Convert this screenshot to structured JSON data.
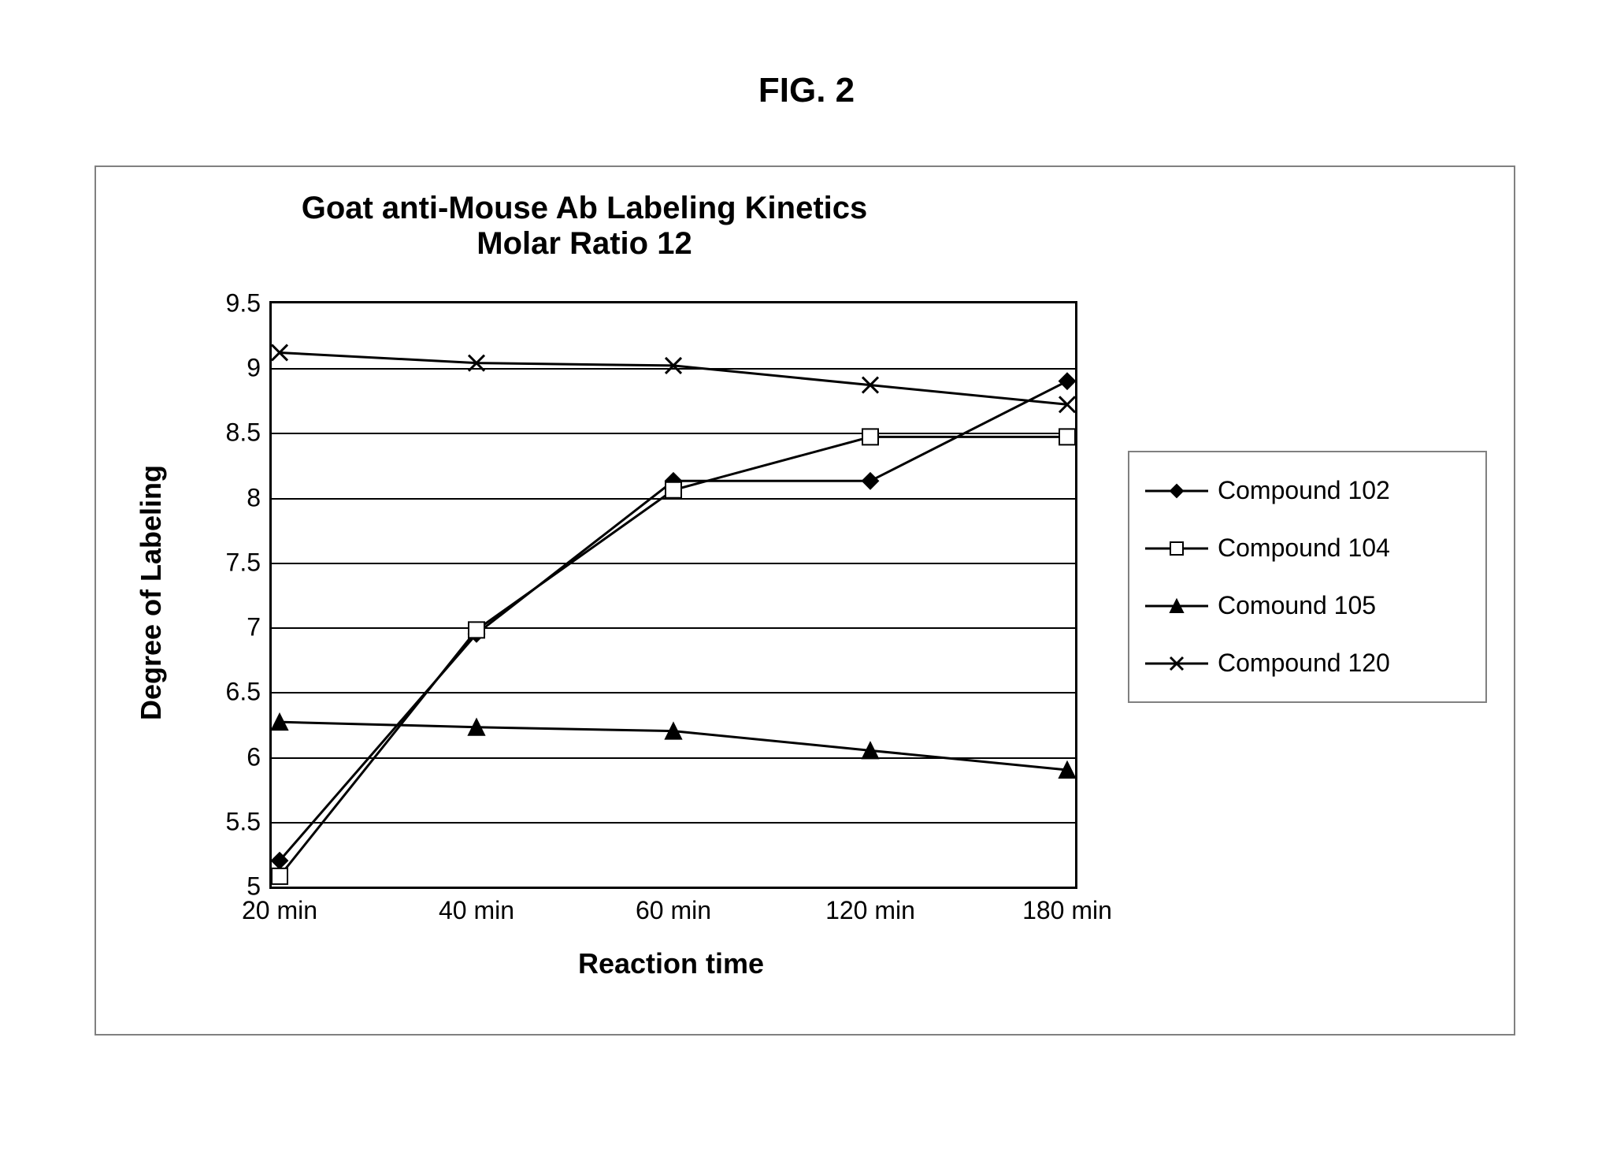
{
  "figure_label": "FIG. 2",
  "chart": {
    "type": "line",
    "title_line1": "Goat anti-Mouse Ab Labeling Kinetics",
    "title_line2": "Molar Ratio 12",
    "title_fontsize": 40,
    "title_fontweight": "bold",
    "xlabel": "Reaction time",
    "ylabel": "Degree of Labeling",
    "label_fontsize": 36,
    "label_fontweight": "bold",
    "tick_fontsize": 32,
    "background_color": "#ffffff",
    "panel_border_color": "#808080",
    "plot_border_color": "#000000",
    "grid_color": "#000000",
    "line_width": 3,
    "marker_size": 10,
    "x_categories": [
      "20 min",
      "40 min",
      "60 min",
      "120 min",
      "180 min"
    ],
    "x_positions": [
      0,
      1,
      2,
      3,
      4
    ],
    "ylim": [
      5,
      9.5
    ],
    "ytick_step": 0.5,
    "yticks": [
      5,
      5.5,
      6,
      6.5,
      7,
      7.5,
      8,
      8.5,
      9,
      9.5
    ],
    "series": [
      {
        "name": "Compound 102",
        "marker": "diamond",
        "marker_fill": "#000000",
        "line_color": "#000000",
        "values": [
          5.2,
          6.95,
          8.13,
          8.13,
          8.9
        ]
      },
      {
        "name": "Compound 104",
        "marker": "square",
        "marker_fill": "#ffffff",
        "line_color": "#000000",
        "values": [
          5.08,
          6.98,
          8.06,
          8.47,
          8.47
        ]
      },
      {
        "name": "Comound 105",
        "marker": "triangle",
        "marker_fill": "#000000",
        "line_color": "#000000",
        "values": [
          6.27,
          6.23,
          6.2,
          6.05,
          5.9
        ]
      },
      {
        "name": "Compound 120",
        "marker": "x",
        "marker_fill": "#000000",
        "line_color": "#000000",
        "values": [
          9.12,
          9.04,
          9.02,
          8.87,
          8.72
        ]
      }
    ],
    "legend_border_color": "#808080",
    "legend_fontsize": 32
  }
}
